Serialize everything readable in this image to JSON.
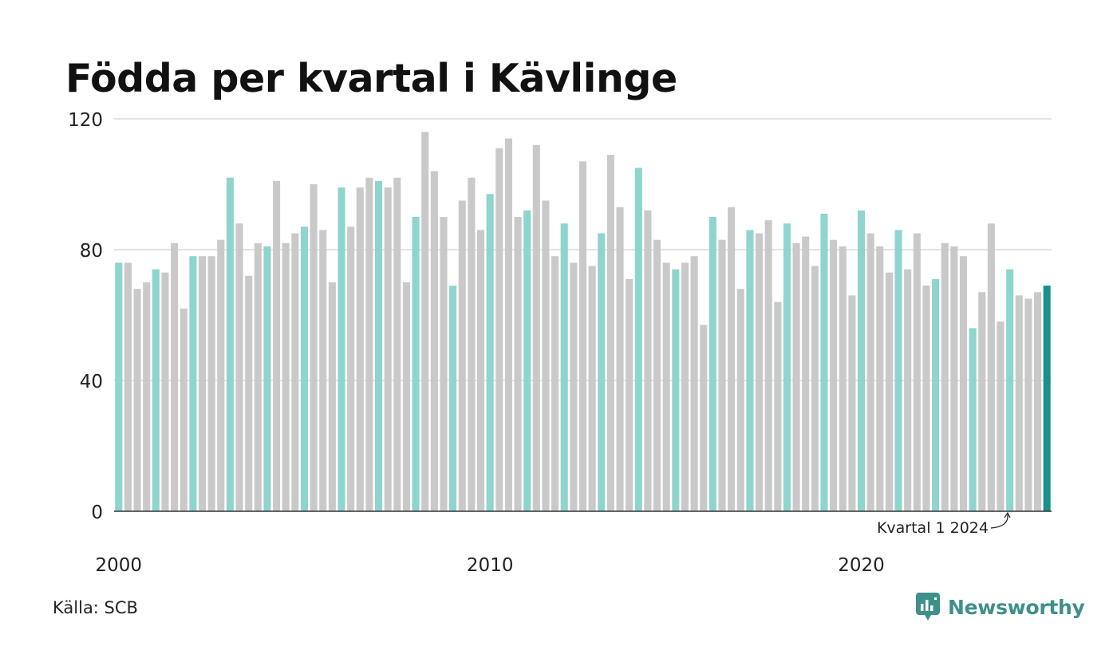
{
  "title": "Födda per kvartal i Kävlinge",
  "source": "Källa: SCB",
  "brand": "Newsworthy",
  "annotation": "Kvartal 1 2024",
  "colors": {
    "q1": "#8dd5cd",
    "other": "#c9c9c9",
    "highlight": "#1a9088",
    "grid": "#e3e3e3",
    "axis": "#333333",
    "brand": "#3f8f8b"
  },
  "chart_data": {
    "type": "bar",
    "title": "Födda per kvartal i Kävlinge",
    "xlabel": "",
    "ylabel": "",
    "ylim": [
      0,
      120
    ],
    "yticks": [
      0,
      40,
      80,
      120
    ],
    "xticks": [
      "2000",
      "2010",
      "2020"
    ],
    "grid": true,
    "legend": "none",
    "start": "2000 Q1",
    "frequency": "quarterly",
    "values": [
      76,
      76,
      68,
      70,
      74,
      73,
      82,
      62,
      78,
      78,
      78,
      83,
      102,
      88,
      72,
      82,
      81,
      101,
      82,
      85,
      87,
      100,
      86,
      70,
      99,
      87,
      99,
      102,
      101,
      99,
      102,
      70,
      90,
      116,
      104,
      90,
      69,
      95,
      102,
      86,
      97,
      111,
      114,
      90,
      92,
      112,
      95,
      78,
      88,
      76,
      107,
      75,
      85,
      109,
      93,
      71,
      105,
      92,
      83,
      76,
      74,
      76,
      78,
      57,
      90,
      83,
      93,
      68,
      86,
      85,
      89,
      64,
      88,
      82,
      84,
      75,
      91,
      83,
      81,
      66,
      92,
      85,
      81,
      73,
      86,
      74,
      85,
      69,
      71,
      82,
      81,
      78,
      56,
      67,
      88,
      58,
      74,
      66,
      65,
      67,
      69
    ]
  }
}
